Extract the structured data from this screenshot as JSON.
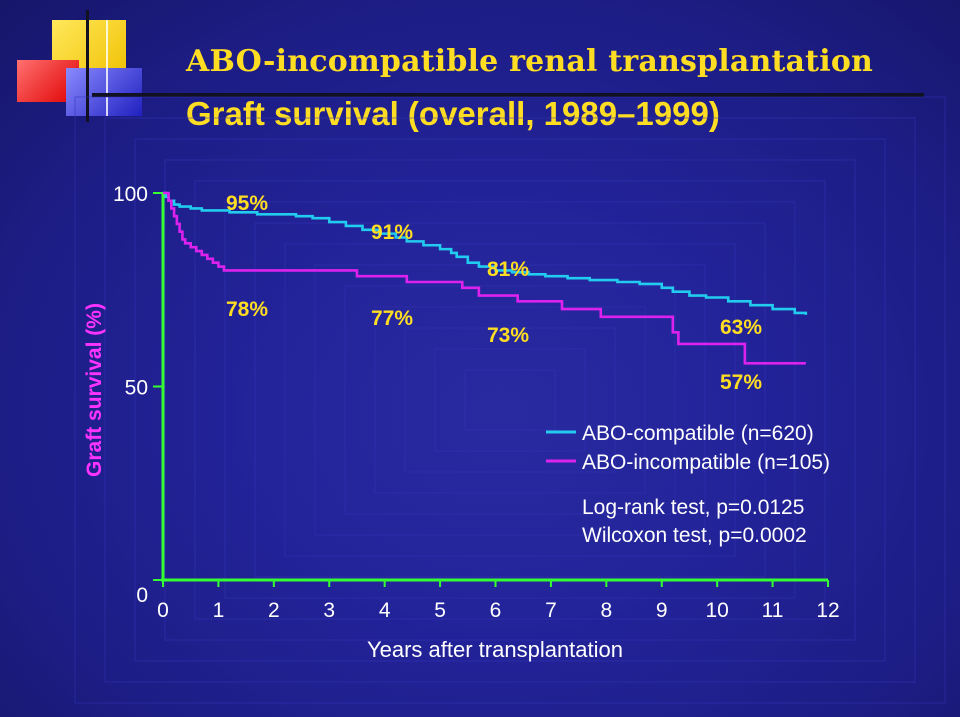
{
  "title": "ABO-incompatible renal transplantation",
  "subtitle": "Graft survival (overall, 1989–1999)",
  "chart_data": {
    "type": "line",
    "xlabel": "Years after transplantation",
    "ylabel": "Graft survival (%)",
    "xlim": [
      0,
      12
    ],
    "ylim": [
      0,
      100
    ],
    "x_ticks": [
      "0",
      "1",
      "2",
      "3",
      "4",
      "5",
      "6",
      "7",
      "8",
      "9",
      "10",
      "11",
      "12"
    ],
    "y_ticks": [
      "0",
      "50",
      "100"
    ],
    "series": [
      {
        "name": "ABO-compatible (n=620)",
        "color": "#22ccee",
        "x": [
          0,
          0.05,
          0.1,
          0.2,
          0.3,
          0.5,
          0.7,
          1.2,
          1.7,
          2.4,
          2.7,
          3.0,
          3.3,
          3.6,
          3.9,
          4.2,
          4.4,
          4.7,
          5.0,
          5.2,
          5.3,
          5.5,
          5.7,
          6.0,
          6.3,
          6.6,
          6.9,
          7.3,
          7.7,
          8.2,
          8.6,
          9.0,
          9.2,
          9.5,
          9.8,
          10.2,
          10.6,
          11.0,
          11.4,
          11.6
        ],
        "y": [
          100,
          99,
          98,
          97,
          96.5,
          96,
          95.5,
          95,
          94.5,
          94,
          93.5,
          92.5,
          91.5,
          90.5,
          89.5,
          88.5,
          87.5,
          86.5,
          85.5,
          84.5,
          83.5,
          82,
          81,
          80,
          79.5,
          79,
          78.5,
          78,
          77.5,
          77,
          76.5,
          75.5,
          74.5,
          73.5,
          73,
          72,
          71,
          70,
          69,
          68.5
        ]
      },
      {
        "name": "ABO-incompatible (n=105)",
        "color": "#dd22ee",
        "x": [
          0,
          0.1,
          0.15,
          0.2,
          0.25,
          0.3,
          0.35,
          0.4,
          0.5,
          0.6,
          0.7,
          0.8,
          0.9,
          1.0,
          1.1,
          2.2,
          3.5,
          4.4,
          5.4,
          5.7,
          6.4,
          7.2,
          7.9,
          9.2,
          9.3,
          10.5,
          11.6
        ],
        "y": [
          100,
          98,
          96,
          94,
          92,
          90,
          88,
          87,
          86,
          85,
          84,
          83,
          82,
          81,
          80,
          80,
          78.5,
          77,
          75.5,
          73.5,
          72,
          70,
          68,
          64,
          61,
          56,
          56
        ]
      }
    ],
    "annotations": {
      "compatible": [
        "95%",
        "91%",
        "81%",
        "63%"
      ],
      "incompatible": [
        "78%",
        "77%",
        "73%",
        "57%"
      ]
    },
    "statistics": [
      "Log-rank test, p=0.0125",
      "Wilcoxon test, p=0.0002"
    ],
    "colors": {
      "axis": "#33ff33",
      "label_yellow": "#ffdd22",
      "ylabel_magenta": "#ff33ff"
    },
    "legend_position": "right"
  }
}
